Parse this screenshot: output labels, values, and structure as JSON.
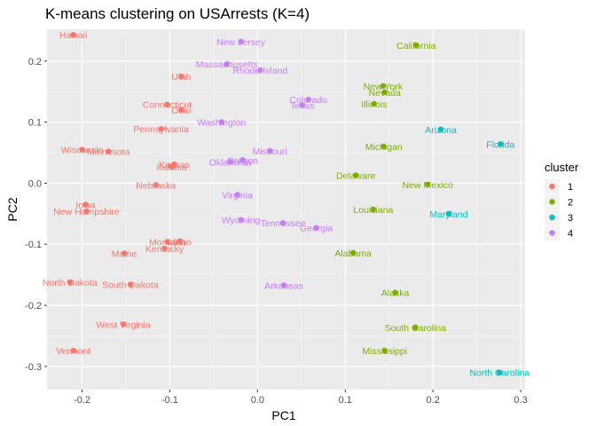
{
  "chart_data": {
    "type": "scatter",
    "title": "K-means clustering on USArrests (K=4)",
    "xlabel": "PC1",
    "ylabel": "PC2",
    "xlim": [
      -0.24,
      0.305
    ],
    "ylim": [
      -0.338,
      0.252
    ],
    "xticks": [
      -0.2,
      -0.1,
      0.0,
      0.1,
      0.2,
      0.3
    ],
    "xtick_labels": [
      "-0.2",
      "-0.1",
      "0.0",
      "0.1",
      "0.2",
      "0.3"
    ],
    "yticks": [
      -0.3,
      -0.2,
      -0.1,
      0.0,
      0.1,
      0.2
    ],
    "ytick_labels": [
      "-0.3",
      "-0.2",
      "-0.1",
      "0.0",
      "0.1",
      "0.2"
    ],
    "grid": true,
    "legend": {
      "title": "cluster",
      "placement": "right",
      "entries": [
        {
          "label": "1",
          "color": "#F8766D"
        },
        {
          "label": "2",
          "color": "#7CAE00"
        },
        {
          "label": "3",
          "color": "#00BFC4"
        },
        {
          "label": "4",
          "color": "#C77CFF"
        }
      ]
    },
    "colors": {
      "1": "#F8766D",
      "2": "#7CAE00",
      "3": "#00BFC4",
      "4": "#C77CFF"
    },
    "points": [
      {
        "label": "Hawaii",
        "x": -0.21,
        "y": 0.243,
        "cluster": "1"
      },
      {
        "label": "Utah",
        "x": -0.087,
        "y": 0.175,
        "cluster": "1"
      },
      {
        "label": "Connecticut",
        "x": -0.103,
        "y": 0.129,
        "cluster": "1"
      },
      {
        "label": "Ohio",
        "x": -0.087,
        "y": 0.12,
        "cluster": "1"
      },
      {
        "label": "Pennsylvania",
        "x": -0.11,
        "y": 0.089,
        "cluster": "1"
      },
      {
        "label": "Wisconsin",
        "x": -0.2,
        "y": 0.055,
        "cluster": "1"
      },
      {
        "label": "Minnesota",
        "x": -0.17,
        "y": 0.052,
        "cluster": "1"
      },
      {
        "label": "Kansas",
        "x": -0.095,
        "y": 0.031,
        "cluster": "1"
      },
      {
        "label": "Indiana",
        "x": -0.098,
        "y": 0.027,
        "cluster": "1"
      },
      {
        "label": "Nebraska",
        "x": -0.116,
        "y": -0.003,
        "cluster": "1"
      },
      {
        "label": "Iowa",
        "x": -0.196,
        "y": -0.035,
        "cluster": "1"
      },
      {
        "label": "New Hampshire",
        "x": -0.195,
        "y": -0.046,
        "cluster": "1"
      },
      {
        "label": "Montana",
        "x": -0.103,
        "y": -0.096,
        "cluster": "1"
      },
      {
        "label": "Idaho",
        "x": -0.089,
        "y": -0.095,
        "cluster": "1"
      },
      {
        "label": "Kentucky",
        "x": -0.106,
        "y": -0.107,
        "cluster": "1"
      },
      {
        "label": "Maine",
        "x": -0.152,
        "y": -0.115,
        "cluster": "1"
      },
      {
        "label": "North Dakota",
        "x": -0.214,
        "y": -0.162,
        "cluster": "1"
      },
      {
        "label": "South Dakota",
        "x": -0.145,
        "y": -0.166,
        "cluster": "1"
      },
      {
        "label": "West Virginia",
        "x": -0.153,
        "y": -0.231,
        "cluster": "1"
      },
      {
        "label": "Vermont",
        "x": -0.21,
        "y": -0.274,
        "cluster": "1"
      },
      {
        "label": "California",
        "x": 0.181,
        "y": 0.226,
        "cluster": "2"
      },
      {
        "label": "New York",
        "x": 0.143,
        "y": 0.159,
        "cluster": "2"
      },
      {
        "label": "Nevada",
        "x": 0.145,
        "y": 0.149,
        "cluster": "2"
      },
      {
        "label": "Illinois",
        "x": 0.133,
        "y": 0.13,
        "cluster": "2"
      },
      {
        "label": "Michigan",
        "x": 0.144,
        "y": 0.06,
        "cluster": "2"
      },
      {
        "label": "Delaware",
        "x": 0.112,
        "y": 0.013,
        "cluster": "2"
      },
      {
        "label": "New Mexico",
        "x": 0.194,
        "y": -0.002,
        "cluster": "2"
      },
      {
        "label": "Louisiana",
        "x": 0.132,
        "y": -0.043,
        "cluster": "2"
      },
      {
        "label": "Alabama",
        "x": 0.109,
        "y": -0.114,
        "cluster": "2"
      },
      {
        "label": "Alaska",
        "x": 0.157,
        "y": -0.179,
        "cluster": "2"
      },
      {
        "label": "South Carolina",
        "x": 0.18,
        "y": -0.236,
        "cluster": "2"
      },
      {
        "label": "Mississippi",
        "x": 0.145,
        "y": -0.274,
        "cluster": "2"
      },
      {
        "label": "Arizona",
        "x": 0.209,
        "y": 0.088,
        "cluster": "3"
      },
      {
        "label": "Florida",
        "x": 0.277,
        "y": 0.064,
        "cluster": "3"
      },
      {
        "label": "Maryland",
        "x": 0.218,
        "y": -0.05,
        "cluster": "3"
      },
      {
        "label": "North Carolina",
        "x": 0.276,
        "y": -0.31,
        "cluster": "3"
      },
      {
        "label": "New Jersey",
        "x": -0.019,
        "y": 0.232,
        "cluster": "4"
      },
      {
        "label": "Massachusetts",
        "x": -0.035,
        "y": 0.195,
        "cluster": "4"
      },
      {
        "label": "Rhode Island",
        "x": 0.003,
        "y": 0.185,
        "cluster": "4"
      },
      {
        "label": "Colorado",
        "x": 0.058,
        "y": 0.137,
        "cluster": "4"
      },
      {
        "label": "Texas",
        "x": 0.051,
        "y": 0.128,
        "cluster": "4"
      },
      {
        "label": "Washington",
        "x": -0.041,
        "y": 0.1,
        "cluster": "4"
      },
      {
        "label": "Missouri",
        "x": 0.014,
        "y": 0.053,
        "cluster": "4"
      },
      {
        "label": "Oregon",
        "x": -0.017,
        "y": 0.038,
        "cluster": "4"
      },
      {
        "label": "Oklahoma",
        "x": -0.031,
        "y": 0.035,
        "cluster": "4"
      },
      {
        "label": "Virginia",
        "x": -0.023,
        "y": -0.019,
        "cluster": "4"
      },
      {
        "label": "Wyoming",
        "x": -0.019,
        "y": -0.06,
        "cluster": "4"
      },
      {
        "label": "Tennessee",
        "x": 0.029,
        "y": -0.065,
        "cluster": "4"
      },
      {
        "label": "Georgia",
        "x": 0.067,
        "y": -0.073,
        "cluster": "4"
      },
      {
        "label": "Arkansas",
        "x": 0.03,
        "y": -0.167,
        "cluster": "4"
      }
    ]
  }
}
